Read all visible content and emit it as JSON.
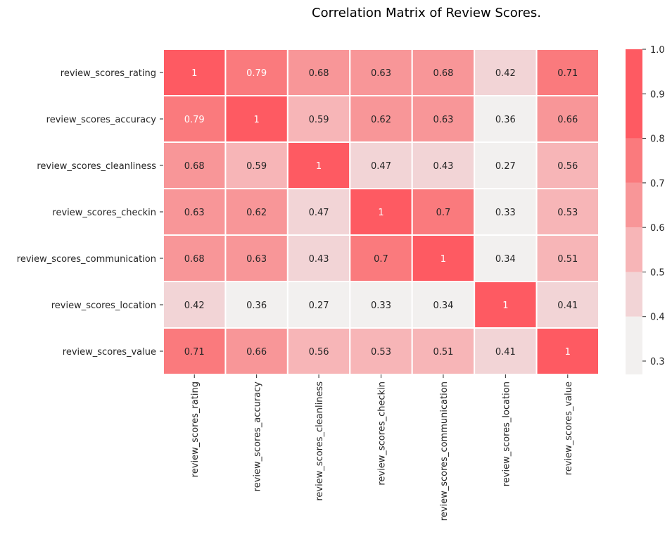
{
  "chart_data": {
    "type": "heatmap",
    "title": "Correlation Matrix of Review Scores.",
    "row_labels": [
      "review_scores_rating",
      "review_scores_accuracy",
      "review_scores_cleanliness",
      "review_scores_checkin",
      "review_scores_communication",
      "review_scores_location",
      "review_scores_value"
    ],
    "col_labels": [
      "review_scores_rating",
      "review_scores_accuracy",
      "review_scores_cleanliness",
      "review_scores_checkin",
      "review_scores_communication",
      "review_scores_location",
      "review_scores_value"
    ],
    "values": [
      [
        1,
        0.79,
        0.68,
        0.63,
        0.68,
        0.42,
        0.71
      ],
      [
        0.79,
        1,
        0.59,
        0.62,
        0.63,
        0.36,
        0.66
      ],
      [
        0.68,
        0.59,
        1,
        0.47,
        0.43,
        0.27,
        0.56
      ],
      [
        0.63,
        0.62,
        0.47,
        1,
        0.7,
        0.33,
        0.53
      ],
      [
        0.68,
        0.63,
        0.43,
        0.7,
        1,
        0.34,
        0.51
      ],
      [
        0.42,
        0.36,
        0.27,
        0.33,
        0.34,
        1,
        0.41
      ],
      [
        0.71,
        0.66,
        0.56,
        0.53,
        0.51,
        0.41,
        1
      ]
    ],
    "colorbar": {
      "range": [
        0.27,
        1.0
      ],
      "ticks": [
        "0.3",
        "0.4",
        "0.5",
        "0.6",
        "0.7",
        "0.8",
        "0.9",
        "1.0"
      ],
      "colors": [
        "#f2f0ef",
        "#f2d4d6",
        "#f7b5b7",
        "#f89698",
        "#fa7a7d",
        "#fe5a62"
      ]
    },
    "cell_text_colors": {
      "light_bg": "#262626",
      "dark_bg": "#ffffff"
    },
    "grid_line_color": "#ffffff"
  }
}
